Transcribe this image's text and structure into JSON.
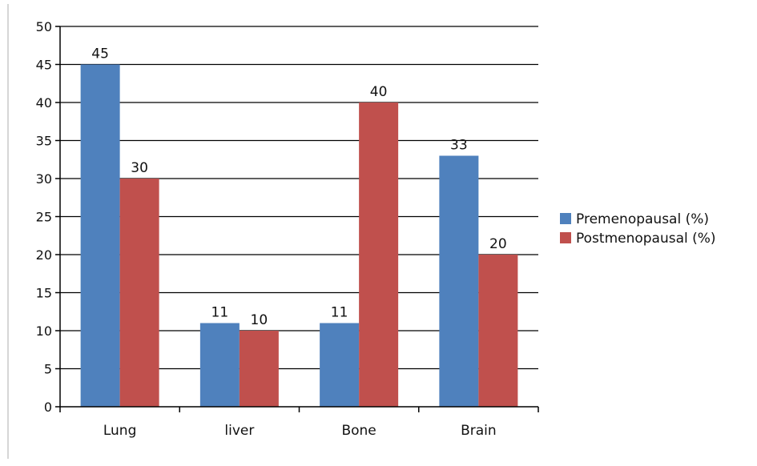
{
  "chart_data": {
    "type": "bar",
    "categories": [
      "Lung",
      "liver",
      "Bone",
      "Brain"
    ],
    "series": [
      {
        "name": "Premenopausal (%)",
        "values": [
          45,
          11,
          11,
          33
        ],
        "color": "#4f81bd"
      },
      {
        "name": "Postmenopausal (%)",
        "values": [
          30,
          10,
          40,
          20
        ],
        "color": "#c0504d"
      }
    ],
    "ylim": [
      0,
      50
    ],
    "yticks": [
      0,
      5,
      10,
      15,
      20,
      25,
      30,
      35,
      40,
      45,
      50
    ],
    "grid": true,
    "legend_position": "right",
    "data_labels": true
  }
}
